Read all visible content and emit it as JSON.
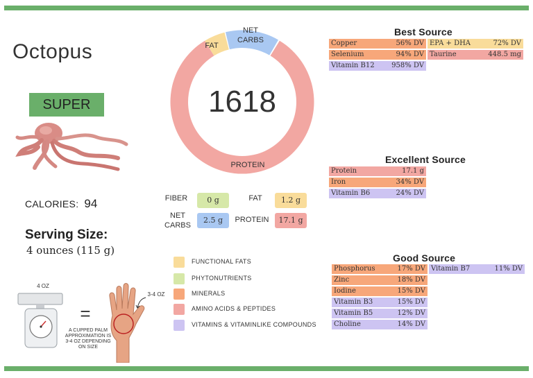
{
  "title": "Octopus",
  "badge": "SUPER",
  "calories": {
    "label": "CALORIES:",
    "value": "94"
  },
  "serving": {
    "title": "Serving Size:",
    "value": "4 ounces (115 g)"
  },
  "donut": {
    "total": "1618",
    "segments": [
      {
        "label": "FAT",
        "color": "#f9dc9a"
      },
      {
        "label_line1": "NET",
        "label_line2": "CARBS",
        "color": "#a9c8f2"
      },
      {
        "label": "PROTEIN",
        "color": "#f2a7a2"
      }
    ]
  },
  "macros": {
    "fiber": {
      "label": "FIBER",
      "value": "0 g",
      "color": "#d6e8a8"
    },
    "fat": {
      "label": "FAT",
      "value": "1.2 g",
      "color": "#f9dc9a"
    },
    "net_carbs": {
      "label_line1": "NET",
      "label_line2": "CARBS",
      "value": "2.5 g",
      "color": "#a9c8f2"
    },
    "protein": {
      "label": "PROTEIN",
      "value": "17.1 g",
      "color": "#f2a7a2"
    }
  },
  "legend": [
    {
      "label": "FUNCTIONAL FATS",
      "color": "#f9dc9a"
    },
    {
      "label": "PHYTONUTRIENTS",
      "color": "#d6e8a8"
    },
    {
      "label": "MINERALS",
      "color": "#f7a77a"
    },
    {
      "label": "AMINO ACIDS & PEPTIDES",
      "color": "#f2a7a2"
    },
    {
      "label": "VITAMINS & VITAMINLIKE COMPOUNDS",
      "color": "#cdc4f2"
    }
  ],
  "best_source": {
    "title": "Best Source",
    "items": [
      {
        "name": "Copper",
        "value": "56% DV",
        "color": "#f7a77a"
      },
      {
        "name": "EPA + DHA",
        "value": "72% DV",
        "color": "#f9dc9a"
      },
      {
        "name": "Selenium",
        "value": "94% DV",
        "color": "#f7a77a"
      },
      {
        "name": "Taurine",
        "value": "448.5 mg",
        "color": "#f2a7a2"
      },
      {
        "name": "Vitamin B12",
        "value": "958% DV",
        "color": "#cdc4f2"
      }
    ]
  },
  "excellent_source": {
    "title": "Excellent Source",
    "items": [
      {
        "name": "Protein",
        "value": "17.1 g",
        "color": "#f2a7a2"
      },
      {
        "name": "Iron",
        "value": "34% DV",
        "color": "#f7a77a"
      },
      {
        "name": "Vitamin B6",
        "value": "24% DV",
        "color": "#cdc4f2"
      }
    ]
  },
  "good_source": {
    "title": "Good Source",
    "items": [
      {
        "name": "Phosphorus",
        "value": "17% DV",
        "color": "#f7a77a"
      },
      {
        "name": "Vitamin B7",
        "value": "11% DV",
        "color": "#cdc4f2"
      },
      {
        "name": "Zinc",
        "value": "18% DV",
        "color": "#f7a77a"
      },
      {
        "name": "Iodine",
        "value": "15% DV",
        "color": "#f7a77a"
      },
      {
        "name": "Vitamin B3",
        "value": "15% DV",
        "color": "#cdc4f2"
      },
      {
        "name": "Vitamin B5",
        "value": "12% DV",
        "color": "#cdc4f2"
      },
      {
        "name": "Choline",
        "value": "14% DV",
        "color": "#cdc4f2"
      }
    ]
  },
  "illustration": {
    "scale_label": "4 OZ",
    "hand_label": "3-4 OZ",
    "equals": "=",
    "caption_line1": "A CUPPED PALM",
    "caption_line2": "APPROXIMATION IS",
    "caption_line3": "3-4 OZ DEPENDING",
    "caption_line4": "ON SIZE"
  }
}
